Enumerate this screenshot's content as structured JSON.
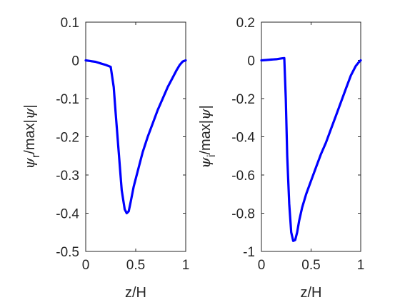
{
  "chart_data": [
    {
      "type": "line",
      "xlabel": "z/H",
      "ylabel": {
        "psi": "ψ",
        "sub": "r",
        "rest": "/max|",
        "psi2": "ψ",
        "end": "|"
      },
      "xlim": [
        0,
        1
      ],
      "ylim": [
        -0.5,
        0.1
      ],
      "xticks": [
        "0",
        "0.5",
        "1"
      ],
      "yticks": [
        "0.1",
        "0",
        "-0.1",
        "-0.2",
        "-0.3",
        "-0.4",
        "-0.5"
      ],
      "xtick_values": [
        0,
        0.5,
        1
      ],
      "ytick_values": [
        0.1,
        0,
        -0.1,
        -0.2,
        -0.3,
        -0.4,
        -0.5
      ],
      "grid": false,
      "line_color": "#0000ff",
      "x": [
        0,
        0.05,
        0.1,
        0.15,
        0.2,
        0.25,
        0.28,
        0.3,
        0.33,
        0.36,
        0.39,
        0.41,
        0.43,
        0.45,
        0.48,
        0.52,
        0.57,
        0.62,
        0.67,
        0.72,
        0.77,
        0.82,
        0.87,
        0.91,
        0.94,
        0.97,
        1.0
      ],
      "y": [
        0,
        -0.002,
        -0.004,
        -0.008,
        -0.012,
        -0.017,
        -0.07,
        -0.14,
        -0.24,
        -0.34,
        -0.39,
        -0.4,
        -0.395,
        -0.37,
        -0.33,
        -0.29,
        -0.24,
        -0.2,
        -0.165,
        -0.13,
        -0.1,
        -0.07,
        -0.045,
        -0.025,
        -0.012,
        -0.003,
        0
      ]
    },
    {
      "type": "line",
      "xlabel": "z/H",
      "ylabel": {
        "psi": "ψ",
        "sub": "i",
        "rest": "/max|",
        "psi2": "ψ",
        "end": "|"
      },
      "xlim": [
        0,
        1
      ],
      "ylim": [
        -1,
        0.2
      ],
      "xticks": [
        "0",
        "0.5",
        "1"
      ],
      "yticks": [
        "0.2",
        "0",
        "-0.2",
        "-0.4",
        "-0.6",
        "-0.8",
        "-1"
      ],
      "xtick_values": [
        0,
        0.5,
        1
      ],
      "ytick_values": [
        0.2,
        0,
        -0.2,
        -0.4,
        -0.6,
        -0.8,
        -1
      ],
      "grid": false,
      "line_color": "#0000ff",
      "x": [
        0,
        0.05,
        0.1,
        0.15,
        0.2,
        0.23,
        0.245,
        0.26,
        0.28,
        0.3,
        0.32,
        0.34,
        0.36,
        0.38,
        0.41,
        0.45,
        0.5,
        0.55,
        0.6,
        0.65,
        0.7,
        0.75,
        0.8,
        0.85,
        0.9,
        0.95,
        0.98,
        1.0
      ],
      "y": [
        0,
        0.002,
        0.004,
        0.006,
        0.01,
        0.012,
        -0.2,
        -0.5,
        -0.75,
        -0.9,
        -0.945,
        -0.94,
        -0.9,
        -0.84,
        -0.77,
        -0.7,
        -0.63,
        -0.56,
        -0.49,
        -0.43,
        -0.36,
        -0.29,
        -0.22,
        -0.15,
        -0.08,
        -0.03,
        -0.01,
        0
      ]
    }
  ]
}
